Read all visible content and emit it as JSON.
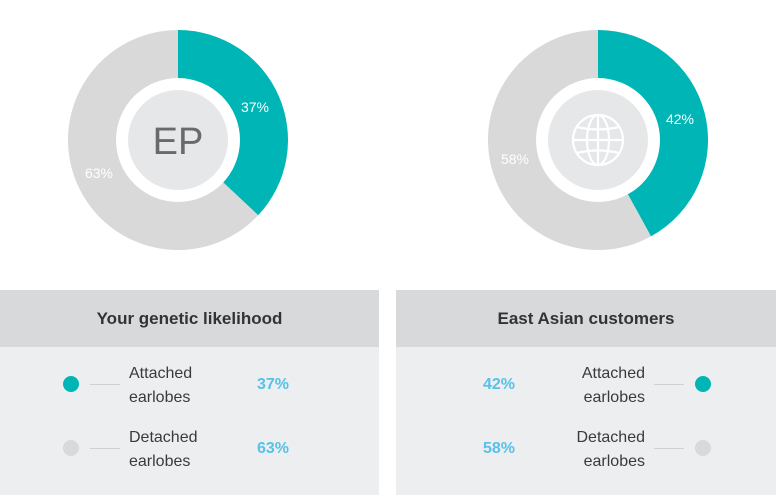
{
  "colors": {
    "accent": "#00b5b5",
    "muted": "#d9d9d9",
    "percent_text": "#57c1e8"
  },
  "left_chart": {
    "center_text": "EP",
    "slices": [
      {
        "label": "37%",
        "value": 37,
        "color": "#00b5b5"
      },
      {
        "label": "63%",
        "value": 63,
        "color": "#d9d9d9"
      }
    ]
  },
  "right_chart": {
    "center_icon": "globe-icon",
    "slices": [
      {
        "label": "42%",
        "value": 42,
        "color": "#00b5b5"
      },
      {
        "label": "58%",
        "value": 58,
        "color": "#d9d9d9"
      }
    ]
  },
  "left_panel": {
    "title": "Your genetic likelihood",
    "rows": [
      {
        "line1": "Attached",
        "line2": "earlobes",
        "pct": "37%",
        "dot": "#00b5b5"
      },
      {
        "line1": "Detached",
        "line2": "earlobes",
        "pct": "63%",
        "dot": "#d9d9d9"
      }
    ]
  },
  "right_panel": {
    "title": "East Asian customers",
    "rows": [
      {
        "line1": "Attached",
        "line2": "earlobes",
        "pct": "42%",
        "dot": "#00b5b5"
      },
      {
        "line1": "Detached",
        "line2": "earlobes",
        "pct": "58%",
        "dot": "#d9d9d9"
      }
    ]
  }
}
